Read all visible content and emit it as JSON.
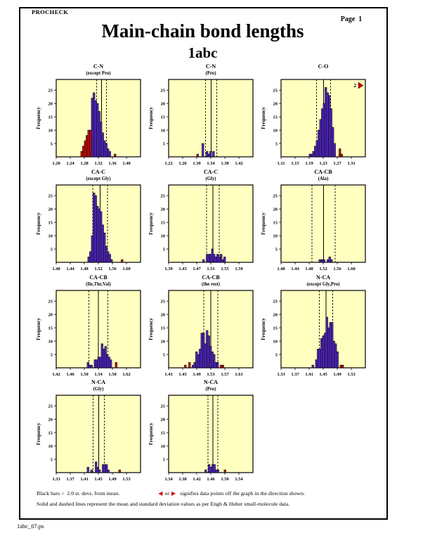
{
  "header": {
    "app": "PROCHECK",
    "page_label": "Page  1",
    "title": "Main-chain bond lengths",
    "subtitle": "1abc"
  },
  "colors": {
    "plot_bg": "#FFFFC0",
    "bar_normal": "#5C2BD6",
    "bar_outlier": "#E01008",
    "line": "#000000",
    "marker_red": "#CC0000"
  },
  "icons": {
    "left_arrow": "◀",
    "right_arrow": "▶"
  },
  "axis": {
    "ylabel": "Frequency",
    "yticks": [
      5,
      10,
      15,
      20,
      25
    ],
    "ymax": 29,
    "tick_step": 0.04,
    "bin_width": 0.005
  },
  "footer": {
    "legend_line1a": "Black bars >  2.0 st. devs. from mean.",
    "legend_or": "or",
    "legend_line1b": "signifies data points off the graph in the direction shown.",
    "legend_line2": "Solid and dashed lines represent the mean and standard deviation values as per Engh & Huber small-molecule data.",
    "filename": "1abc_07.ps"
  },
  "chart_data": [
    {
      "type": "bar",
      "title": "C-N",
      "subtitle": "(except Pro)",
      "xmin": 1.2,
      "xticks": [
        "1.20",
        "1.24",
        "1.28",
        "1.32",
        "1.36",
        "1.40"
      ],
      "mean": 1.329,
      "sd_lines": [
        1.315,
        1.343
      ],
      "bars": [
        [
          1.27,
          2,
          1
        ],
        [
          1.275,
          4,
          1
        ],
        [
          1.28,
          6,
          1
        ],
        [
          1.285,
          8,
          1
        ],
        [
          1.29,
          10,
          1
        ],
        [
          1.295,
          10,
          1
        ],
        [
          1.3,
          22,
          0
        ],
        [
          1.305,
          24,
          0
        ],
        [
          1.31,
          21,
          0
        ],
        [
          1.315,
          20,
          0
        ],
        [
          1.32,
          17,
          0
        ],
        [
          1.325,
          13,
          0
        ],
        [
          1.33,
          9,
          0
        ],
        [
          1.335,
          6,
          0
        ],
        [
          1.34,
          5,
          0
        ],
        [
          1.345,
          3,
          0
        ],
        [
          1.35,
          2,
          0
        ],
        [
          1.365,
          1,
          1
        ]
      ]
    },
    {
      "type": "bar",
      "title": "C-N",
      "subtitle": "(Pro)",
      "xmin": 1.22,
      "xticks": [
        "1.22",
        "1.26",
        "1.30",
        "1.34",
        "1.38",
        "1.42"
      ],
      "mean": 1.341,
      "sd_lines": [
        1.325,
        1.357
      ],
      "bars": [
        [
          1.3,
          1,
          1
        ],
        [
          1.315,
          5,
          0
        ],
        [
          1.327,
          2,
          0
        ],
        [
          1.332,
          1,
          0
        ],
        [
          1.337,
          2,
          0
        ],
        [
          1.345,
          2,
          0
        ]
      ]
    },
    {
      "type": "bar",
      "title": "C-O",
      "subtitle": "",
      "xmin": 1.11,
      "xticks": [
        "1.11",
        "1.15",
        "1.19",
        "1.23",
        "1.27",
        "1.31"
      ],
      "mean": 1.231,
      "sd_lines": [
        1.211,
        1.251
      ],
      "offgraph": {
        "count": "2",
        "dir": "right"
      },
      "bars": [
        [
          1.19,
          1,
          0
        ],
        [
          1.195,
          1,
          0
        ],
        [
          1.2,
          2,
          0
        ],
        [
          1.205,
          4,
          0
        ],
        [
          1.21,
          6,
          0
        ],
        [
          1.215,
          10,
          0
        ],
        [
          1.22,
          14,
          0
        ],
        [
          1.225,
          18,
          0
        ],
        [
          1.23,
          20,
          0
        ],
        [
          1.235,
          26,
          0
        ],
        [
          1.24,
          24,
          0
        ],
        [
          1.245,
          23,
          0
        ],
        [
          1.25,
          18,
          0
        ],
        [
          1.255,
          11,
          0
        ],
        [
          1.26,
          5,
          0
        ],
        [
          1.275,
          3,
          1
        ],
        [
          1.28,
          1,
          1
        ]
      ]
    },
    {
      "type": "bar",
      "title": "CA-C",
      "subtitle": "(except Gly)",
      "xmin": 1.4,
      "xticks": [
        "1.40",
        "1.44",
        "1.48",
        "1.52",
        "1.56",
        "1.60"
      ],
      "mean": 1.525,
      "sd_lines": [
        1.504,
        1.546
      ],
      "bars": [
        [
          1.49,
          2,
          0
        ],
        [
          1.495,
          4,
          0
        ],
        [
          1.5,
          10,
          0
        ],
        [
          1.505,
          26,
          0
        ],
        [
          1.51,
          25,
          0
        ],
        [
          1.515,
          21,
          0
        ],
        [
          1.52,
          20,
          0
        ],
        [
          1.525,
          19,
          0
        ],
        [
          1.53,
          14,
          0
        ],
        [
          1.535,
          11,
          0
        ],
        [
          1.54,
          6,
          0
        ],
        [
          1.545,
          4,
          0
        ],
        [
          1.55,
          3,
          0
        ],
        [
          1.555,
          1,
          0
        ],
        [
          1.585,
          1,
          1
        ]
      ]
    },
    {
      "type": "bar",
      "title": "CA-C",
      "subtitle": "(Gly)",
      "xmin": 1.39,
      "xticks": [
        "1.39",
        "1.43",
        "1.47",
        "1.51",
        "1.55",
        "1.59"
      ],
      "mean": 1.516,
      "sd_lines": [
        1.498,
        1.534
      ],
      "bars": [
        [
          1.487,
          1,
          0
        ],
        [
          1.497,
          3,
          0
        ],
        [
          1.502,
          3,
          0
        ],
        [
          1.507,
          3,
          0
        ],
        [
          1.512,
          5,
          0
        ],
        [
          1.517,
          3,
          0
        ],
        [
          1.522,
          2,
          0
        ],
        [
          1.527,
          3,
          0
        ],
        [
          1.532,
          2,
          0
        ],
        [
          1.537,
          3,
          0
        ],
        [
          1.542,
          1,
          0
        ],
        [
          1.547,
          2,
          0
        ]
      ]
    },
    {
      "type": "bar",
      "title": "CA-CB",
      "subtitle": "(Ala)",
      "xmin": 1.4,
      "xticks": [
        "1.40",
        "1.44",
        "1.48",
        "1.52",
        "1.56",
        "1.60"
      ],
      "mean": 1.521,
      "sd_lines": [
        1.488,
        1.554
      ],
      "bars": [
        [
          1.508,
          1,
          0
        ],
        [
          1.514,
          1,
          0
        ],
        [
          1.52,
          1,
          0
        ],
        [
          1.531,
          1,
          0
        ],
        [
          1.536,
          2,
          0
        ],
        [
          1.541,
          1,
          0
        ]
      ]
    },
    {
      "type": "bar",
      "title": "CA-CB",
      "subtitle": "(Ile,Thr,Val)",
      "xmin": 1.42,
      "xticks": [
        "1.42",
        "1.46",
        "1.50",
        "1.54",
        "1.58",
        "1.62"
      ],
      "mean": 1.54,
      "sd_lines": [
        1.513,
        1.567
      ],
      "bars": [
        [
          1.508,
          2,
          0
        ],
        [
          1.513,
          1,
          0
        ],
        [
          1.518,
          1,
          0
        ],
        [
          1.528,
          3,
          0
        ],
        [
          1.533,
          3,
          0
        ],
        [
          1.538,
          4,
          0
        ],
        [
          1.543,
          4,
          0
        ],
        [
          1.548,
          9,
          0
        ],
        [
          1.553,
          7,
          0
        ],
        [
          1.558,
          8,
          0
        ],
        [
          1.563,
          5,
          0
        ],
        [
          1.568,
          4,
          0
        ],
        [
          1.573,
          3,
          0
        ],
        [
          1.588,
          2,
          1
        ]
      ]
    },
    {
      "type": "bar",
      "title": "CA-CB",
      "subtitle": "(the rest)",
      "xmin": 1.41,
      "xticks": [
        "1.41",
        "1.45",
        "1.49",
        "1.53",
        "1.57",
        "1.61"
      ],
      "mean": 1.53,
      "sd_lines": [
        1.51,
        1.55
      ],
      "bars": [
        [
          1.455,
          1,
          1
        ],
        [
          1.467,
          2,
          1
        ],
        [
          1.477,
          1,
          0
        ],
        [
          1.482,
          2,
          0
        ],
        [
          1.487,
          6,
          0
        ],
        [
          1.492,
          5,
          0
        ],
        [
          1.497,
          7,
          0
        ],
        [
          1.502,
          13,
          0
        ],
        [
          1.507,
          13,
          0
        ],
        [
          1.512,
          9,
          0
        ],
        [
          1.517,
          14,
          0
        ],
        [
          1.522,
          12,
          0
        ],
        [
          1.527,
          8,
          0
        ],
        [
          1.532,
          6,
          0
        ],
        [
          1.537,
          5,
          0
        ],
        [
          1.542,
          2,
          0
        ],
        [
          1.547,
          2,
          0
        ],
        [
          1.557,
          1,
          1
        ],
        [
          1.562,
          1,
          1
        ]
      ]
    },
    {
      "type": "bar",
      "title": "N-CA",
      "subtitle": "(except Gly,Pro)",
      "xmin": 1.33,
      "xticks": [
        "1.33",
        "1.37",
        "1.41",
        "1.45",
        "1.49",
        "1.53"
      ],
      "mean": 1.458,
      "sd_lines": [
        1.439,
        1.477
      ],
      "bars": [
        [
          1.418,
          1,
          0
        ],
        [
          1.428,
          3,
          0
        ],
        [
          1.433,
          7,
          0
        ],
        [
          1.438,
          7,
          0
        ],
        [
          1.443,
          11,
          0
        ],
        [
          1.448,
          12,
          0
        ],
        [
          1.453,
          13,
          0
        ],
        [
          1.458,
          19,
          0
        ],
        [
          1.463,
          15,
          0
        ],
        [
          1.468,
          17,
          0
        ],
        [
          1.473,
          17,
          0
        ],
        [
          1.478,
          10,
          0
        ],
        [
          1.483,
          9,
          0
        ],
        [
          1.488,
          6,
          0
        ],
        [
          1.498,
          1,
          1
        ],
        [
          1.503,
          1,
          1
        ]
      ]
    },
    {
      "type": "bar",
      "title": "N-CA",
      "subtitle": "(Gly)",
      "xmin": 1.33,
      "xticks": [
        "1.33",
        "1.37",
        "1.41",
        "1.45",
        "1.49",
        "1.53"
      ],
      "mean": 1.451,
      "sd_lines": [
        1.435,
        1.467
      ],
      "bars": [
        [
          1.418,
          2,
          0
        ],
        [
          1.428,
          1,
          0
        ],
        [
          1.441,
          4,
          0
        ],
        [
          1.446,
          2,
          0
        ],
        [
          1.451,
          1,
          0
        ],
        [
          1.461,
          3,
          0
        ],
        [
          1.466,
          3,
          0
        ],
        [
          1.471,
          3,
          0
        ],
        [
          1.476,
          1,
          0
        ],
        [
          1.508,
          1,
          1
        ]
      ]
    },
    {
      "type": "bar",
      "title": "N-CA",
      "subtitle": "(Pro)",
      "xmin": 1.34,
      "xticks": [
        "1.34",
        "1.38",
        "1.42",
        "1.46",
        "1.50",
        "1.54"
      ],
      "mean": 1.466,
      "sd_lines": [
        1.452,
        1.48
      ],
      "bars": [
        [
          1.443,
          1,
          0
        ],
        [
          1.453,
          3,
          0
        ],
        [
          1.458,
          2,
          0
        ],
        [
          1.463,
          3,
          0
        ],
        [
          1.468,
          3,
          0
        ],
        [
          1.473,
          1,
          0
        ],
        [
          1.478,
          1,
          0
        ],
        [
          1.498,
          1,
          1
        ]
      ]
    }
  ]
}
